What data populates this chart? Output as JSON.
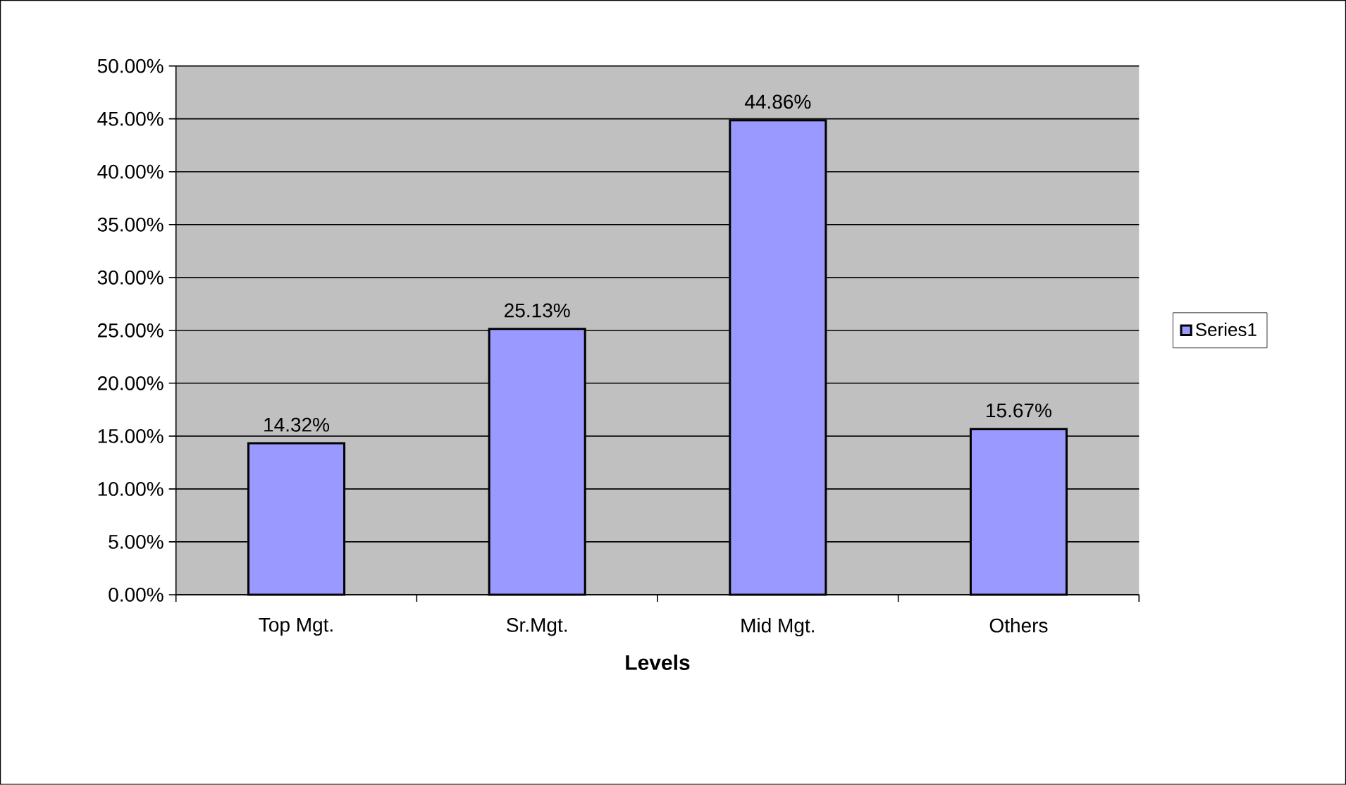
{
  "chart_data": {
    "type": "bar",
    "xlabel": "Levels",
    "categories": [
      "Top Mgt.",
      "Sr.Mgt.",
      "Mid Mgt.",
      "Others"
    ],
    "series": [
      {
        "name": "Series1",
        "color": "#9999ff",
        "values": [
          14.32,
          25.13,
          44.86,
          15.67
        ]
      }
    ],
    "value_labels": [
      "14.32%",
      "25.13%",
      "44.86%",
      "15.67%"
    ],
    "ylim": [
      0,
      50
    ],
    "yticks": [
      {
        "value": 0,
        "label": "0.00%"
      },
      {
        "value": 5,
        "label": "5.00%"
      },
      {
        "value": 10,
        "label": "10.00%"
      },
      {
        "value": 15,
        "label": "15.00%"
      },
      {
        "value": 20,
        "label": "20.00%"
      },
      {
        "value": 25,
        "label": "25.00%"
      },
      {
        "value": 30,
        "label": "30.00%"
      },
      {
        "value": 35,
        "label": "35.00%"
      },
      {
        "value": 40,
        "label": "40.00%"
      },
      {
        "value": 45,
        "label": "45.00%"
      },
      {
        "value": 50,
        "label": "50.00%"
      }
    ],
    "grid": "y",
    "legend": "right"
  }
}
